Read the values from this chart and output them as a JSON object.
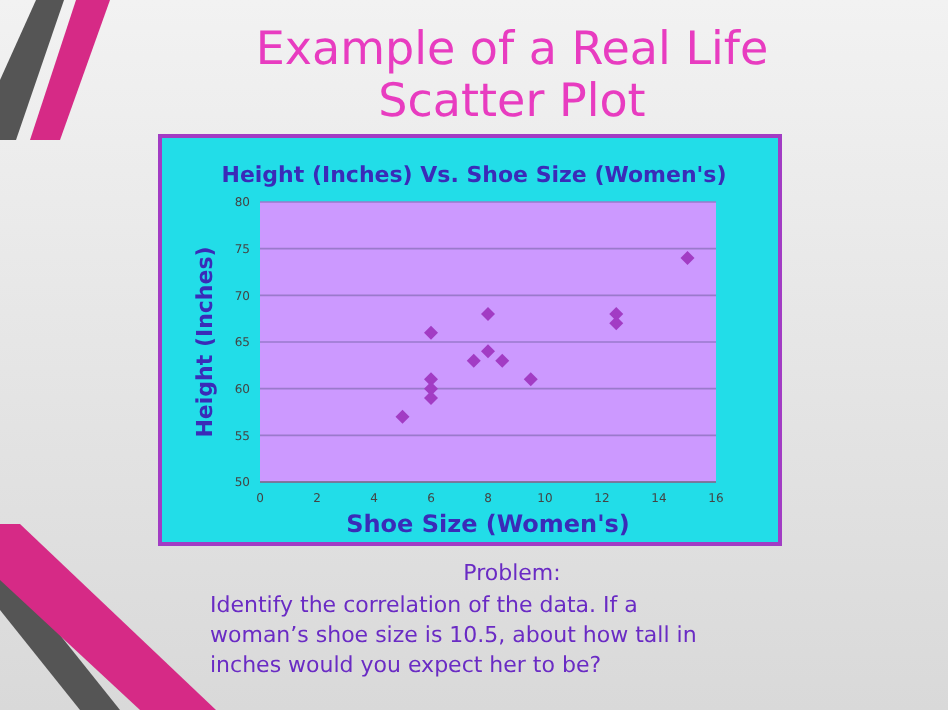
{
  "chart_data": {
    "type": "scatter",
    "title": "Example of a Real Life Scatter Plot",
    "subtitle": "Height (Inches) Vs. Shoe Size (Women's)",
    "xlabel": "Shoe Size (Women's)",
    "ylabel": "Height (Inches)",
    "x": [
      5,
      6,
      6,
      6,
      6,
      7.5,
      8,
      8,
      8.5,
      9.5,
      12.5,
      12.5,
      15
    ],
    "series": [
      {
        "color": "#a23cc4",
        "values": [
          57,
          66,
          61,
          60,
          59,
          63,
          68,
          64,
          63,
          61,
          68,
          67,
          74
        ]
      }
    ],
    "xlim": [
      0,
      16
    ],
    "xticks": [
      0,
      2,
      4,
      6,
      8,
      10,
      12,
      14,
      16
    ],
    "ylim": [
      50,
      80
    ],
    "yticks": [
      50,
      55,
      60,
      65,
      70,
      75,
      80
    ],
    "grid": "y",
    "marker": "diamond",
    "annotations": [
      "Problem:",
      "Identify the correlation of the data. If a woman’s shoe size is 10.5, about how tall in inches would you expect her to be?"
    ]
  }
}
